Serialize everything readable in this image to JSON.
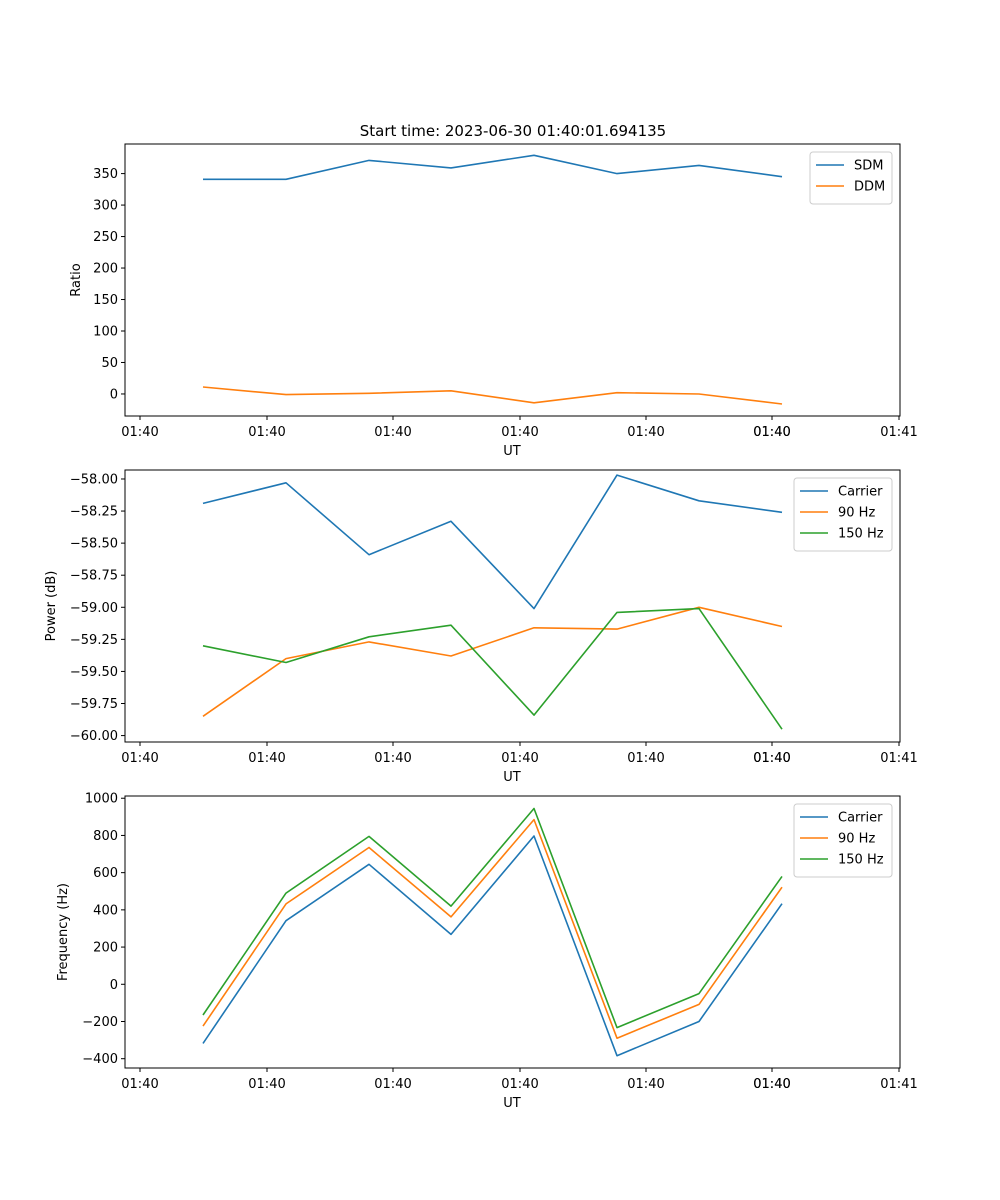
{
  "figure": {
    "title": "Start time: 2023-06-30 01:40:01.694135"
  },
  "colors": {
    "blue": "#1f77b4",
    "orange": "#ff7f0e",
    "green": "#2ca02c"
  },
  "chart_data": [
    {
      "type": "line",
      "title": "Start time: 2023-06-30 01:40:01.694135",
      "xlabel": "UT",
      "ylabel": "Ratio",
      "x_tick_labels": [
        "01:40",
        "01:40",
        "01:40",
        "01:40",
        "01:40",
        "01:40",
        "01:40",
        "01:41"
      ],
      "y_ticks": [
        0,
        50,
        100,
        150,
        200,
        250,
        300,
        350
      ],
      "ylim": [
        -35,
        397
      ],
      "legend_position": "upper right",
      "grid": false,
      "series": [
        {
          "name": "SDM",
          "color": "#1f77b4",
          "values": [
            341,
            341,
            371,
            359,
            379,
            350,
            363,
            345
          ]
        },
        {
          "name": "DDM",
          "color": "#ff7f0e",
          "values": [
            11,
            -1,
            1,
            5,
            -14,
            2,
            0,
            -16
          ]
        }
      ]
    },
    {
      "type": "line",
      "title": "",
      "xlabel": "UT",
      "ylabel": "Power (dB)",
      "x_tick_labels": [
        "01:40",
        "01:40",
        "01:40",
        "01:40",
        "01:40",
        "01:40",
        "01:40",
        "01:41"
      ],
      "y_ticks": [
        -60.0,
        -59.75,
        -59.5,
        -59.25,
        -59.0,
        -58.75,
        -58.5,
        -58.25,
        -58.0
      ],
      "y_tick_labels": [
        "−60.00",
        "−59.75",
        "−59.50",
        "−59.25",
        "−59.00",
        "−58.75",
        "−58.50",
        "−58.25",
        "−58.00"
      ],
      "ylim": [
        -60.05,
        -57.93
      ],
      "legend_position": "upper right",
      "grid": false,
      "series": [
        {
          "name": "Carrier",
          "color": "#1f77b4",
          "values": [
            -58.19,
            -58.03,
            -58.59,
            -58.33,
            -59.01,
            -57.97,
            -58.17,
            -58.26
          ]
        },
        {
          "name": "90 Hz",
          "color": "#ff7f0e",
          "values": [
            -59.85,
            -59.4,
            -59.27,
            -59.38,
            -59.16,
            -59.17,
            -59.0,
            -59.15
          ]
        },
        {
          "name": "150 Hz",
          "color": "#2ca02c",
          "values": [
            -59.3,
            -59.43,
            -59.23,
            -59.14,
            -59.84,
            -59.04,
            -59.01,
            -59.95
          ]
        }
      ]
    },
    {
      "type": "line",
      "title": "",
      "xlabel": "UT",
      "ylabel": "Frequency (Hz)",
      "x_tick_labels": [
        "01:40",
        "01:40",
        "01:40",
        "01:40",
        "01:40",
        "01:40",
        "01:40",
        "01:41"
      ],
      "y_ticks": [
        -400,
        -200,
        0,
        200,
        400,
        600,
        800,
        1000
      ],
      "y_tick_labels": [
        "−400",
        "−200",
        "0",
        "200",
        "400",
        "600",
        "800",
        "1000"
      ],
      "ylim": [
        -450,
        1012
      ],
      "legend_position": "upper right",
      "grid": false,
      "series": [
        {
          "name": "Carrier",
          "color": "#1f77b4",
          "values": [
            -318,
            342,
            645,
            268,
            797,
            -384,
            -200,
            433
          ]
        },
        {
          "name": "90 Hz",
          "color": "#ff7f0e",
          "values": [
            -225,
            432,
            735,
            362,
            885,
            -290,
            -108,
            522
          ]
        },
        {
          "name": "150 Hz",
          "color": "#2ca02c",
          "values": [
            -165,
            490,
            795,
            420,
            945,
            -233,
            -50,
            580
          ]
        }
      ]
    }
  ]
}
